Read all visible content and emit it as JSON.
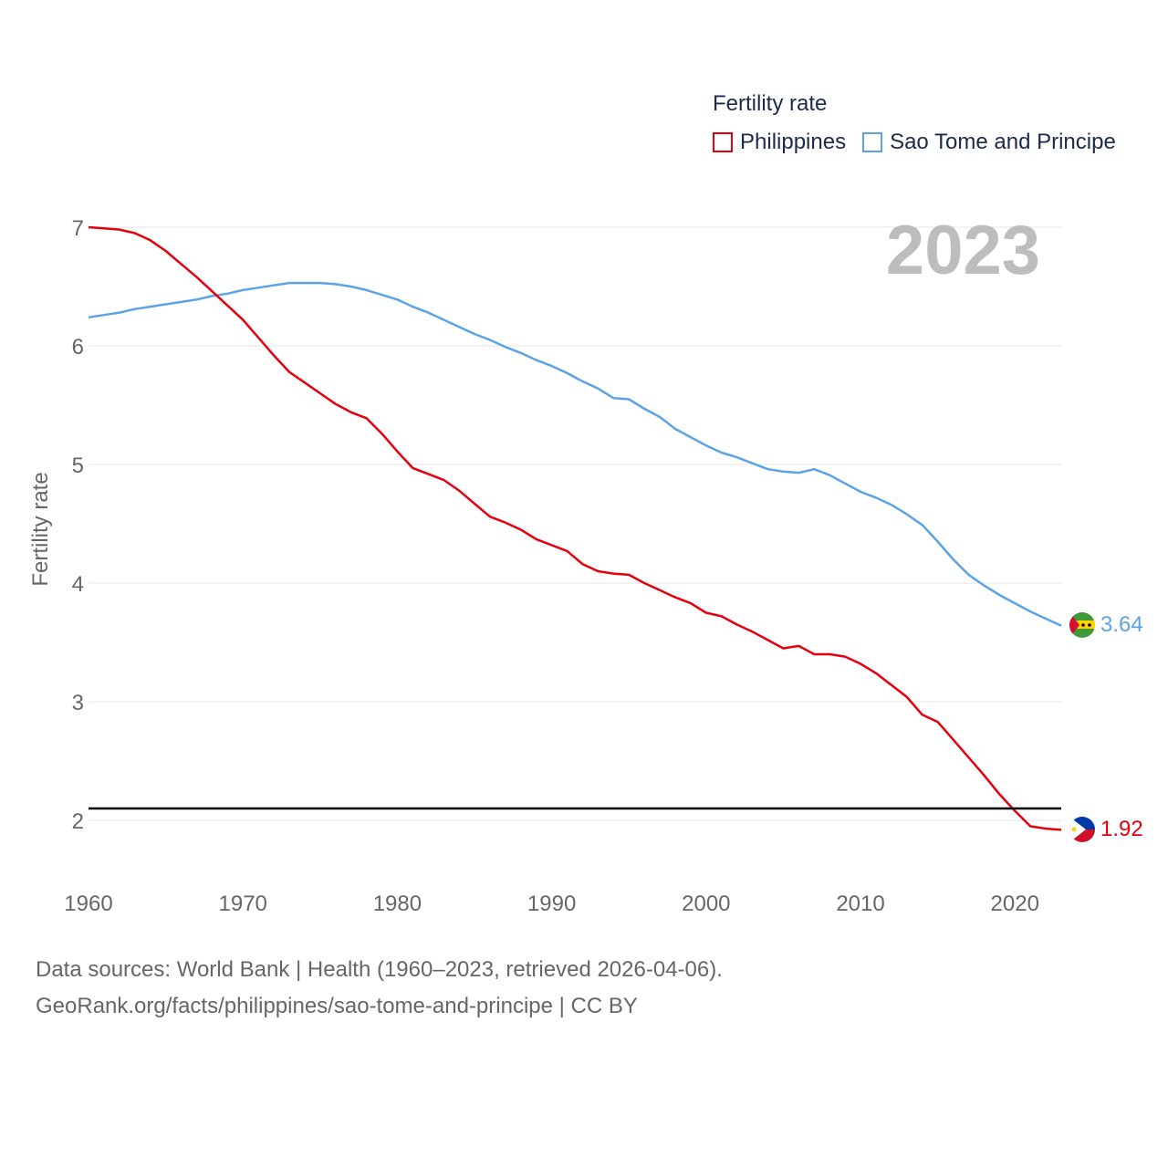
{
  "chart_data": {
    "type": "line",
    "legend_title": "Fertility rate",
    "ylabel": "Fertility rate",
    "xlabel": "",
    "year_label": "2023",
    "xlim": [
      1960,
      2023
    ],
    "ylim": [
      1.5,
      7.0
    ],
    "x_ticks": [
      1960,
      1970,
      1980,
      1990,
      2000,
      2010,
      2020
    ],
    "y_ticks": [
      2,
      3,
      4,
      5,
      6,
      7
    ],
    "reference_line": 2.1,
    "legend_position": "top-right",
    "x": [
      1960,
      1961,
      1962,
      1963,
      1964,
      1965,
      1966,
      1967,
      1968,
      1969,
      1970,
      1971,
      1972,
      1973,
      1974,
      1975,
      1976,
      1977,
      1978,
      1979,
      1980,
      1981,
      1982,
      1983,
      1984,
      1985,
      1986,
      1987,
      1988,
      1989,
      1990,
      1991,
      1992,
      1993,
      1994,
      1995,
      1996,
      1997,
      1998,
      1999,
      2000,
      2001,
      2002,
      2003,
      2004,
      2005,
      2006,
      2007,
      2008,
      2009,
      2010,
      2011,
      2012,
      2013,
      2014,
      2015,
      2016,
      2017,
      2018,
      2019,
      2020,
      2021,
      2022,
      2023
    ],
    "series": [
      {
        "name": "Philippines",
        "color": "#e6000d",
        "end_label": "1.92",
        "values": [
          7.0,
          6.99,
          6.98,
          6.95,
          6.89,
          6.8,
          6.69,
          6.58,
          6.46,
          6.34,
          6.22,
          6.07,
          5.92,
          5.78,
          5.69,
          5.6,
          5.51,
          5.44,
          5.39,
          5.26,
          5.11,
          4.97,
          4.92,
          4.87,
          4.78,
          4.67,
          4.56,
          4.51,
          4.45,
          4.37,
          4.32,
          4.27,
          4.16,
          4.1,
          4.08,
          4.07,
          4.0,
          3.94,
          3.88,
          3.83,
          3.75,
          3.72,
          3.65,
          3.59,
          3.52,
          3.45,
          3.47,
          3.4,
          3.4,
          3.38,
          3.32,
          3.24,
          3.14,
          3.04,
          2.89,
          2.83,
          2.68,
          2.53,
          2.38,
          2.22,
          2.08,
          1.95,
          1.93,
          1.92
        ]
      },
      {
        "name": "Sao Tome and Principe",
        "color": "#5ba3e6",
        "end_label": "3.64",
        "values": [
          6.24,
          6.26,
          6.28,
          6.31,
          6.33,
          6.35,
          6.37,
          6.39,
          6.42,
          6.44,
          6.47,
          6.49,
          6.51,
          6.53,
          6.53,
          6.53,
          6.52,
          6.5,
          6.47,
          6.43,
          6.39,
          6.33,
          6.28,
          6.22,
          6.16,
          6.1,
          6.05,
          5.99,
          5.94,
          5.88,
          5.83,
          5.77,
          5.7,
          5.64,
          5.56,
          5.55,
          5.47,
          5.4,
          5.3,
          5.23,
          5.16,
          5.1,
          5.06,
          5.01,
          4.96,
          4.94,
          4.93,
          4.96,
          4.91,
          4.84,
          4.77,
          4.72,
          4.66,
          4.58,
          4.49,
          4.35,
          4.2,
          4.07,
          3.98,
          3.9,
          3.83,
          3.76,
          3.7,
          3.64
        ]
      }
    ]
  },
  "source": {
    "line1": "Data sources: World Bank | Health (1960–2023, retrieved 2026-04-06).",
    "line2": "GeoRank.org/facts/philippines/sao-tome-and-principe | CC BY"
  }
}
